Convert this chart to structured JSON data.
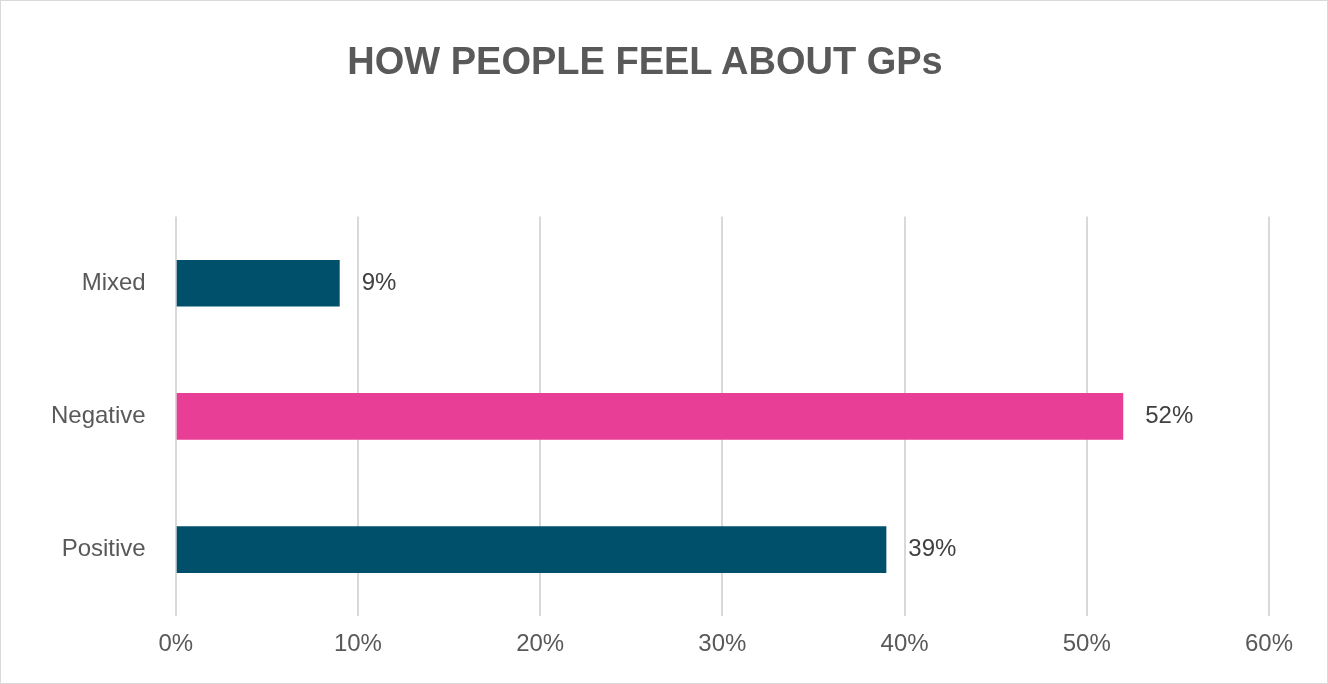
{
  "chart_data": {
    "type": "bar",
    "orientation": "horizontal",
    "title": "HOW PEOPLE FEEL ABOUT GPs",
    "categories": [
      "Mixed",
      "Negative",
      "Positive"
    ],
    "values": [
      9,
      52,
      39
    ],
    "colors": [
      "#00506b",
      "#e83e96",
      "#00506b"
    ],
    "value_labels": [
      "9%",
      "52%",
      "39%"
    ],
    "xlim": [
      0,
      60
    ],
    "xticks": [
      {
        "value": 0,
        "label": "0%"
      },
      {
        "value": 10,
        "label": "10%"
      },
      {
        "value": 20,
        "label": "20%"
      },
      {
        "value": 30,
        "label": "30%"
      },
      {
        "value": 40,
        "label": "40%"
      },
      {
        "value": 50,
        "label": "50%"
      },
      {
        "value": 60,
        "label": "60%"
      }
    ],
    "grid": "x",
    "legend": false
  }
}
